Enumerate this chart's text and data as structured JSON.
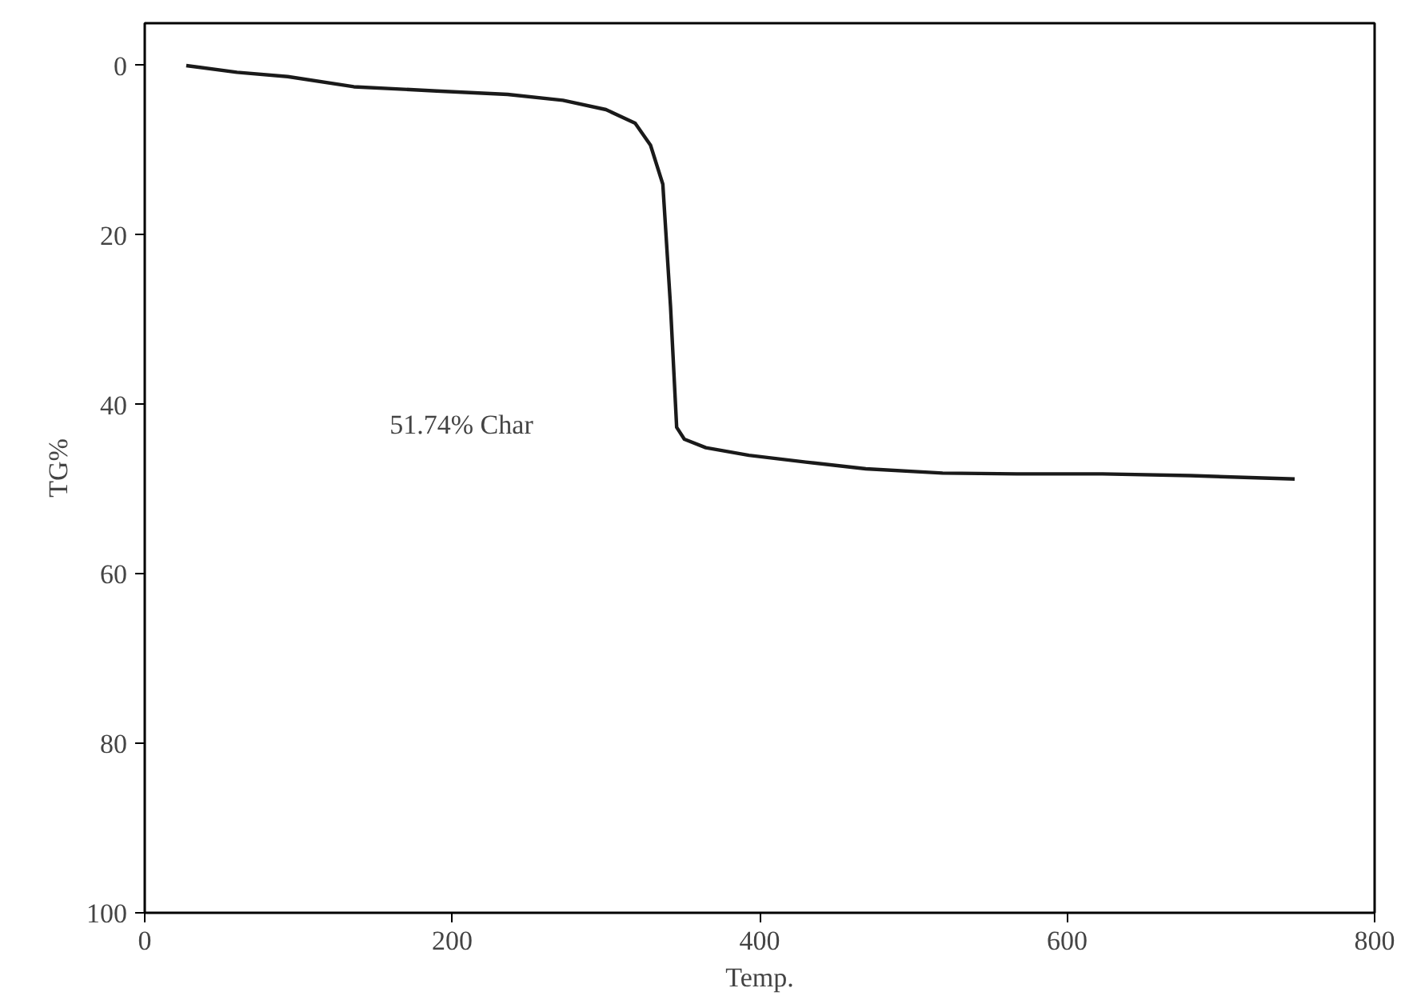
{
  "chart_data": {
    "type": "line",
    "xlabel": "Temp.",
    "ylabel": "TG%",
    "annotations": [
      "51.74% Char"
    ],
    "series": [
      {
        "color": "#1a1a1a",
        "x": [
          27,
          60,
          93,
          136,
          190,
          236,
          272,
          300,
          319,
          329,
          337,
          342,
          346,
          351,
          365,
          393,
          430,
          469,
          519,
          570,
          623,
          680,
          748
        ],
        "values": [
          0,
          0.8,
          1.3,
          2.5,
          3.0,
          3.4,
          4.1,
          5.2,
          6.8,
          9.4,
          14,
          28.4,
          42.7,
          44.1,
          45.1,
          46,
          46.8,
          47.6,
          48.1,
          48.2,
          48.2,
          48.4,
          48.8
        ]
      }
    ],
    "xlim": [
      0,
      800
    ],
    "xticks": [
      0,
      200,
      400,
      600,
      800
    ],
    "ylim": [
      100,
      -5
    ],
    "yticks": [
      0,
      20,
      40,
      60,
      80,
      100
    ],
    "grid": false,
    "marker": "none",
    "line_style": "solid"
  }
}
